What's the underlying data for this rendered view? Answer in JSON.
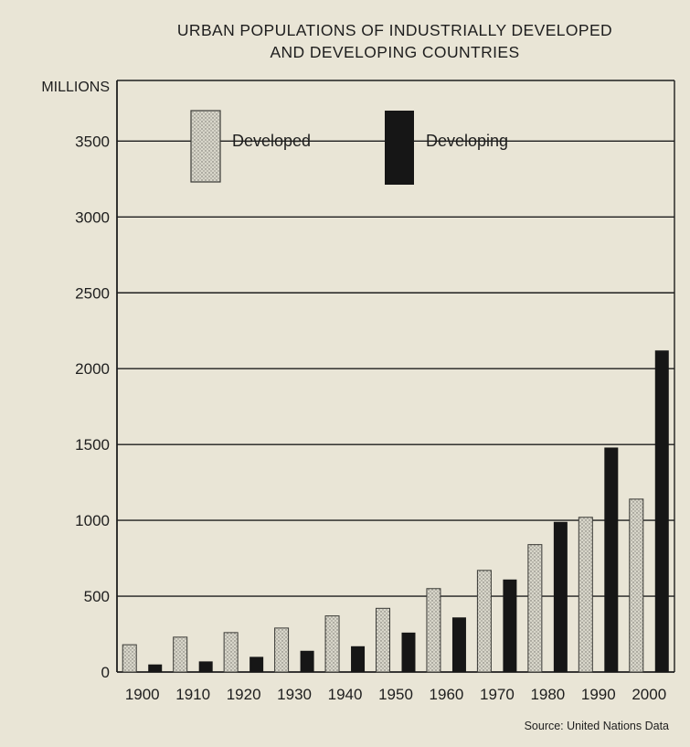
{
  "chart_data": {
    "type": "bar",
    "title_lines": [
      "URBAN POPULATIONS OF INDUSTRIALLY DEVELOPED",
      "AND DEVELOPING COUNTRIES"
    ],
    "ylabel": "MILLIONS",
    "categories": [
      "1900",
      "1910",
      "1920",
      "1930",
      "1940",
      "1950",
      "1960",
      "1970",
      "1980",
      "1990",
      "2000"
    ],
    "yticks": [
      0,
      500,
      1000,
      1500,
      2000,
      2500,
      3000,
      3500
    ],
    "ylim": [
      0,
      3900
    ],
    "grid": "horizontal",
    "legend_position": "top-left",
    "series": [
      {
        "name": "Developed",
        "color": "#c9c9bd",
        "pattern": "stippled",
        "values": [
          180,
          230,
          260,
          290,
          370,
          420,
          550,
          670,
          840,
          1020,
          1140
        ]
      },
      {
        "name": "Developing",
        "color": "#161616",
        "pattern": "solid",
        "values": [
          50,
          70,
          100,
          140,
          170,
          260,
          360,
          610,
          990,
          1480,
          2120
        ]
      }
    ],
    "source": "Source: United Nations Data"
  }
}
